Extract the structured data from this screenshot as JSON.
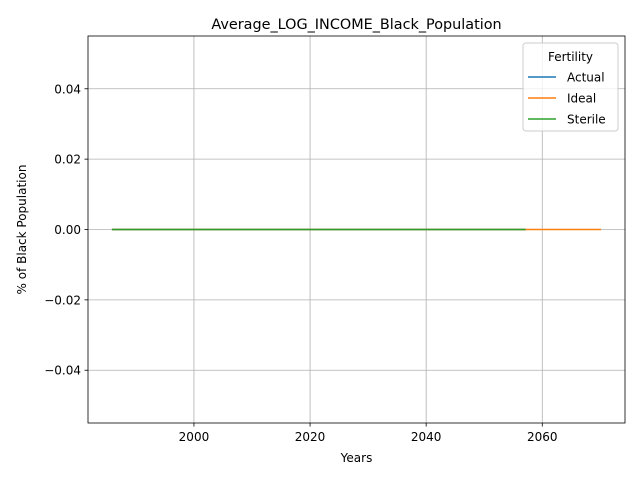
{
  "chart_data": {
    "type": "line",
    "title": "Average_LOG_INCOME_Black_Population",
    "xlabel": "Years",
    "ylabel": "% of Black Population",
    "xlim": [
      1981.75,
      2074.25
    ],
    "ylim": [
      -0.055,
      0.055
    ],
    "x_ticks": [
      2000,
      2020,
      2040,
      2060
    ],
    "y_ticks": [
      -0.04,
      -0.02,
      0.0,
      0.02,
      0.04
    ],
    "y_tick_labels": [
      "−0.04",
      "−0.02",
      "0.00",
      "0.02",
      "0.04"
    ],
    "grid": true,
    "legend": {
      "title": "Fertility",
      "placement": "top-right"
    },
    "series": [
      {
        "name": "Actual",
        "color": "#1f77b4",
        "x": [
          1986,
          2057
        ],
        "y": [
          0,
          0
        ]
      },
      {
        "name": "Ideal",
        "color": "#ff7f0e",
        "x": [
          1986,
          2070
        ],
        "y": [
          0,
          0
        ]
      },
      {
        "name": "Sterile",
        "color": "#2ca02c",
        "x": [
          1986,
          2057
        ],
        "y": [
          0,
          0
        ]
      }
    ]
  }
}
